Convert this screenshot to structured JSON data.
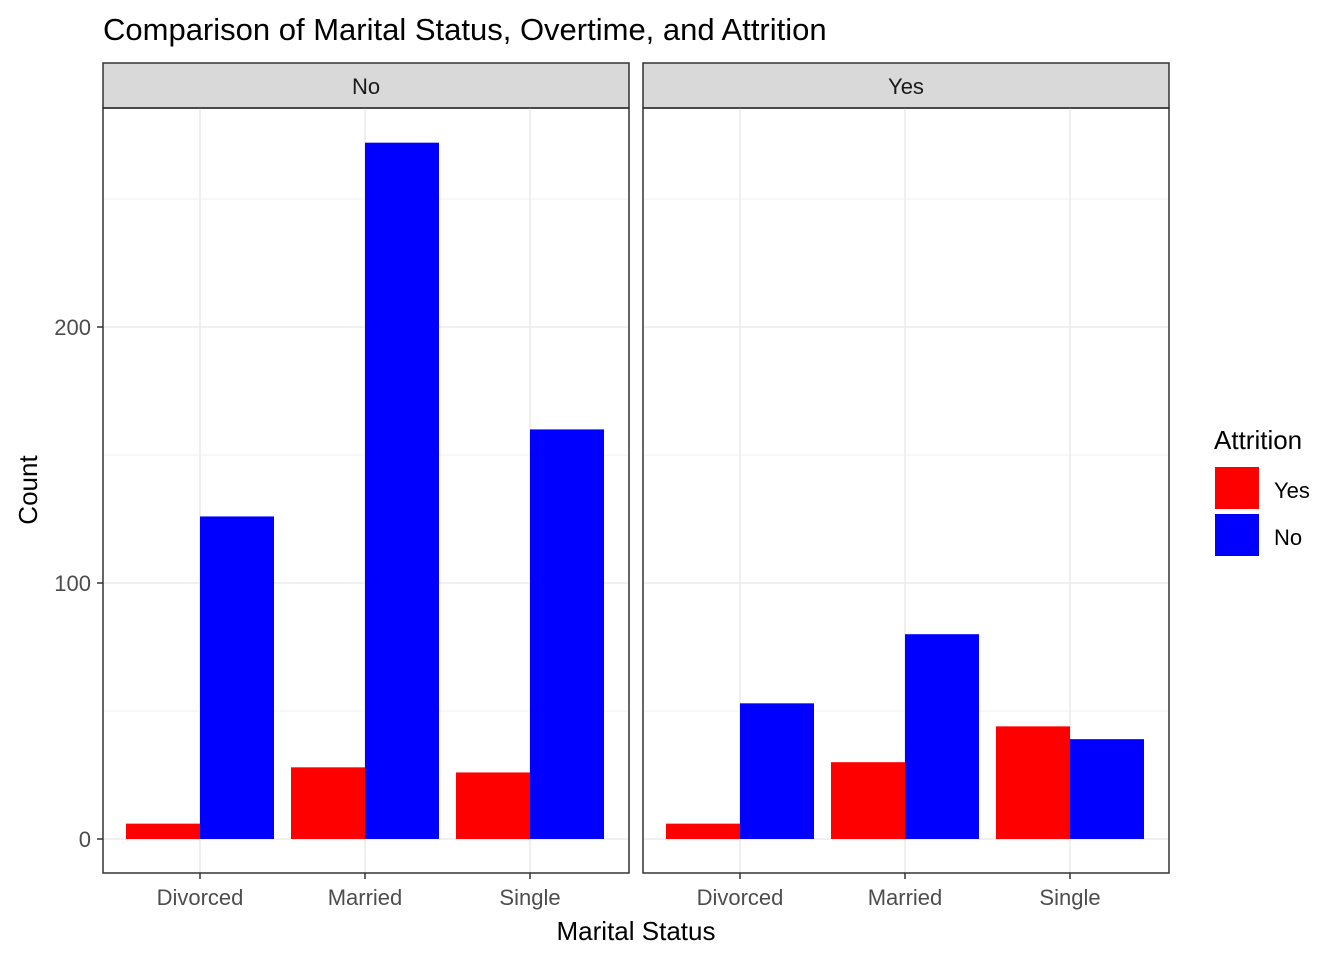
{
  "chart_data": {
    "type": "bar",
    "title": "Comparison of Marital Status, Overtime, and Attrition",
    "xlabel": "Marital Status",
    "ylabel": "Count",
    "ylim": [
      0,
      270
    ],
    "yticks": [
      0,
      100,
      200
    ],
    "grid": true,
    "categories": [
      "Divorced",
      "Married",
      "Single"
    ],
    "legend": {
      "title": "Attrition",
      "position": "right",
      "items": [
        {
          "label": "Yes",
          "color": "#FF0000"
        },
        {
          "label": "No",
          "color": "#0000FF"
        }
      ]
    },
    "panels": [
      {
        "label": "No",
        "series": [
          {
            "name": "Yes",
            "color": "#FF0000",
            "values": [
              6,
              28,
              26
            ]
          },
          {
            "name": "No",
            "color": "#0000FF",
            "values": [
              126,
              272,
              160
            ]
          }
        ]
      },
      {
        "label": "Yes",
        "series": [
          {
            "name": "Yes",
            "color": "#FF0000",
            "values": [
              6,
              30,
              44
            ]
          },
          {
            "name": "No",
            "color": "#0000FF",
            "values": [
              53,
              80,
              39
            ]
          }
        ]
      }
    ]
  }
}
